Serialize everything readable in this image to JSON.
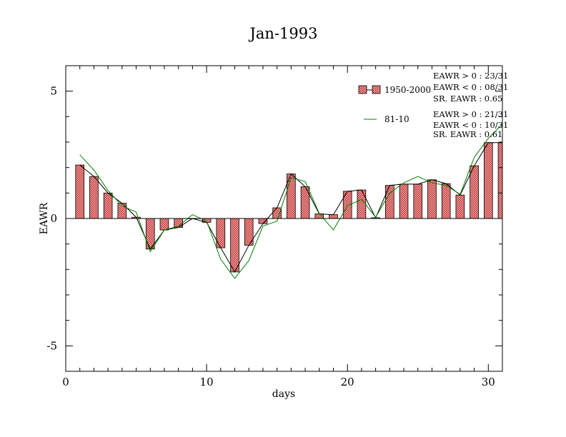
{
  "chart_data": {
    "type": "bar",
    "title": "Jan-1993",
    "xlabel": "days",
    "ylabel": "EAWR",
    "xlim": [
      0,
      31
    ],
    "ylim": [
      -6,
      6
    ],
    "x_ticks": [
      0,
      10,
      20,
      30
    ],
    "y_ticks": [
      -5,
      0,
      5
    ],
    "x_tick_labels": [
      "0",
      "10",
      "20",
      "30"
    ],
    "y_tick_labels": [
      "-5",
      "0",
      "5"
    ],
    "grid": false,
    "legend_position": "top-right",
    "days": [
      1,
      2,
      3,
      4,
      5,
      6,
      7,
      8,
      9,
      10,
      11,
      12,
      13,
      14,
      15,
      16,
      17,
      18,
      19,
      20,
      21,
      22,
      23,
      24,
      25,
      26,
      27,
      28,
      29,
      30,
      31
    ],
    "series": [
      {
        "name": "1950-2000",
        "kind": "bar",
        "color": "#e88080",
        "values": [
          2.1,
          1.65,
          1.0,
          0.6,
          0.05,
          -1.2,
          -0.45,
          -0.35,
          0.0,
          -0.15,
          -1.15,
          -2.1,
          -1.05,
          -0.2,
          0.42,
          1.75,
          1.25,
          0.18,
          0.15,
          1.07,
          1.12,
          0.03,
          1.3,
          1.35,
          1.35,
          1.52,
          1.37,
          0.92,
          2.07,
          2.98,
          2.98
        ]
      },
      {
        "name": "81-10",
        "kind": "line",
        "color": "#008000",
        "values": [
          2.5,
          1.9,
          1.1,
          0.5,
          0.25,
          -1.3,
          -0.45,
          -0.3,
          0.15,
          -0.1,
          -1.6,
          -2.35,
          -1.65,
          -0.3,
          -0.1,
          1.6,
          1.45,
          0.2,
          -0.45,
          0.5,
          0.75,
          0.05,
          1.0,
          1.4,
          1.65,
          1.4,
          1.3,
          0.95,
          2.4,
          3.15,
          3.7
        ]
      }
    ],
    "mean_line": {
      "color": "#000000",
      "values": [
        2.1,
        1.65,
        1.0,
        0.6,
        0.05,
        -1.2,
        -0.45,
        -0.35,
        0.0,
        -0.15,
        -1.15,
        -2.1,
        -1.05,
        -0.2,
        0.42,
        1.75,
        1.25,
        0.18,
        0.15,
        1.07,
        1.12,
        0.03,
        1.3,
        1.35,
        1.35,
        1.52,
        1.37,
        0.92,
        2.07,
        2.98,
        2.98
      ]
    },
    "stats": [
      [
        "EAWR > 0 : 23/31",
        "EAWR < 0 : 08/31",
        "SR. EAWR :  0.65"
      ],
      [
        "EAWR > 0 : 21/31",
        "EAWR < 0 : 10/31",
        "SR. EAWR :  0.61"
      ]
    ]
  }
}
